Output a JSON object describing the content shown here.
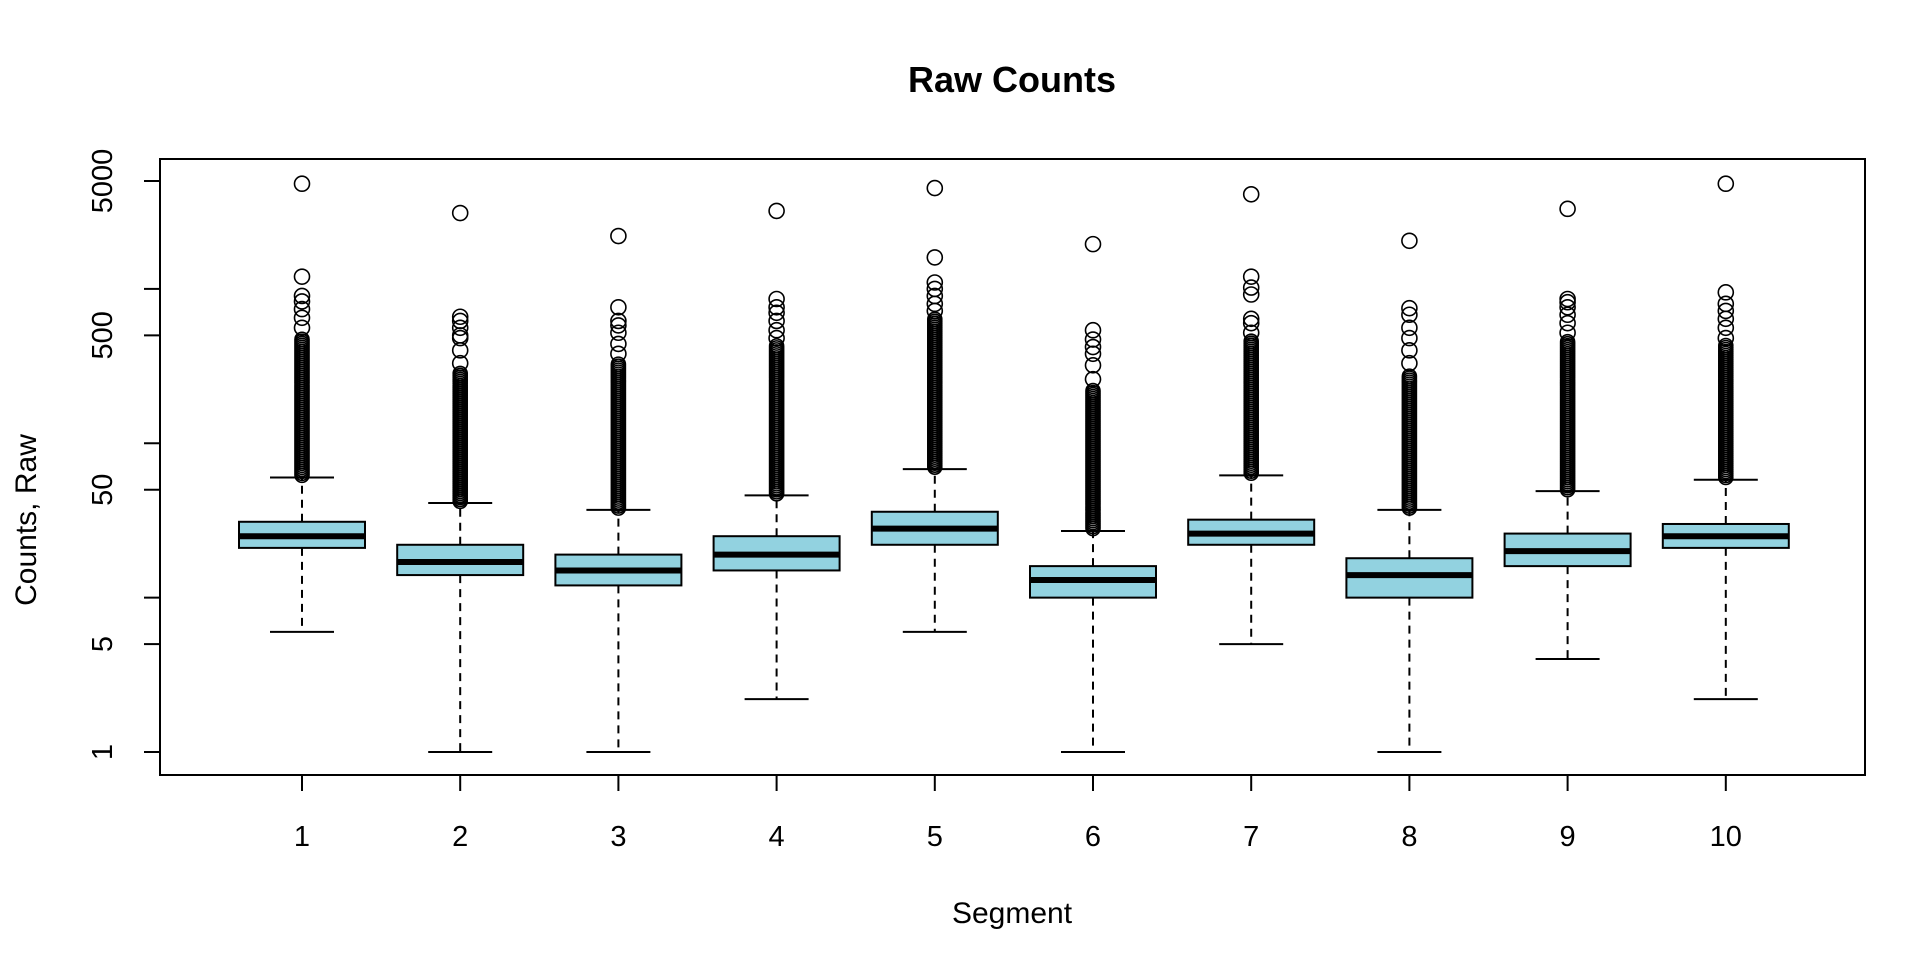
{
  "chart_data": {
    "type": "boxplot",
    "title": "Raw Counts",
    "xlabel": "Segment",
    "ylabel": "Counts, Raw",
    "y_scale": "log",
    "ylim": [
      1,
      6500
    ],
    "y_ticks": [
      1,
      5,
      50,
      500,
      5000
    ],
    "y_minor_ticks": [
      1,
      5,
      10,
      50,
      100,
      500,
      1000,
      5000
    ],
    "y_tick_labels": [
      "1",
      "5",
      "50",
      "500",
      "5000"
    ],
    "grid": false,
    "box_color": "#92D2E0",
    "categories": [
      "1",
      "2",
      "3",
      "4",
      "5",
      "6",
      "7",
      "8",
      "9",
      "10"
    ],
    "boxes": [
      {
        "name": "1",
        "whisker_low": 6,
        "q1": 21,
        "median": 25,
        "q3": 31,
        "whisker_high": 60
      },
      {
        "name": "2",
        "whisker_low": 1,
        "q1": 14,
        "median": 17,
        "q3": 22,
        "whisker_high": 41
      },
      {
        "name": "3",
        "whisker_low": 1,
        "q1": 12,
        "median": 15,
        "q3": 19,
        "whisker_high": 37
      },
      {
        "name": "4",
        "whisker_low": 2.2,
        "q1": 15,
        "median": 19,
        "q3": 25,
        "whisker_high": 46
      },
      {
        "name": "5",
        "whisker_low": 6,
        "q1": 22,
        "median": 28,
        "q3": 36,
        "whisker_high": 68
      },
      {
        "name": "6",
        "whisker_low": 1,
        "q1": 10,
        "median": 13,
        "q3": 16,
        "whisker_high": 27
      },
      {
        "name": "7",
        "whisker_low": 5,
        "q1": 22,
        "median": 26,
        "q3": 32,
        "whisker_high": 62
      },
      {
        "name": "8",
        "whisker_low": 1,
        "q1": 10,
        "median": 14,
        "q3": 18,
        "whisker_high": 37
      },
      {
        "name": "9",
        "whisker_low": 4,
        "q1": 16,
        "median": 20,
        "q3": 26,
        "whisker_high": 49
      },
      {
        "name": "10",
        "whisker_low": 2.2,
        "q1": 21,
        "median": 25,
        "q3": 30,
        "whisker_high": 58
      }
    ],
    "outliers": [
      {
        "segment": "1",
        "dense_from": 62,
        "dense_to": 480,
        "points": [
          560,
          650,
          740,
          830,
          900,
          1200,
          4800
        ]
      },
      {
        "segment": "2",
        "dense_from": 42,
        "dense_to": 290,
        "points": [
          330,
          400,
          480,
          500,
          560,
          620,
          660,
          3100
        ]
      },
      {
        "segment": "3",
        "dense_from": 38,
        "dense_to": 330,
        "points": [
          380,
          440,
          520,
          580,
          620,
          760,
          2200
        ]
      },
      {
        "segment": "4",
        "dense_from": 47,
        "dense_to": 430,
        "points": [
          480,
          540,
          620,
          700,
          760,
          860,
          3200
        ]
      },
      {
        "segment": "5",
        "dense_from": 70,
        "dense_to": 650,
        "points": [
          720,
          800,
          900,
          1000,
          1100,
          1600,
          4500
        ]
      },
      {
        "segment": "6",
        "dense_from": 28,
        "dense_to": 220,
        "points": [
          260,
          320,
          380,
          420,
          470,
          540,
          1950
        ]
      },
      {
        "segment": "7",
        "dense_from": 64,
        "dense_to": 470,
        "points": [
          520,
          600,
          640,
          920,
          1020,
          1200,
          4100
        ]
      },
      {
        "segment": "8",
        "dense_from": 38,
        "dense_to": 280,
        "points": [
          330,
          400,
          480,
          560,
          680,
          750,
          2050
        ]
      },
      {
        "segment": "9",
        "dense_from": 50,
        "dense_to": 460,
        "points": [
          520,
          600,
          680,
          760,
          820,
          860,
          3300
        ]
      },
      {
        "segment": "10",
        "dense_from": 60,
        "dense_to": 430,
        "points": [
          480,
          560,
          640,
          720,
          800,
          950,
          4800
        ]
      }
    ]
  }
}
